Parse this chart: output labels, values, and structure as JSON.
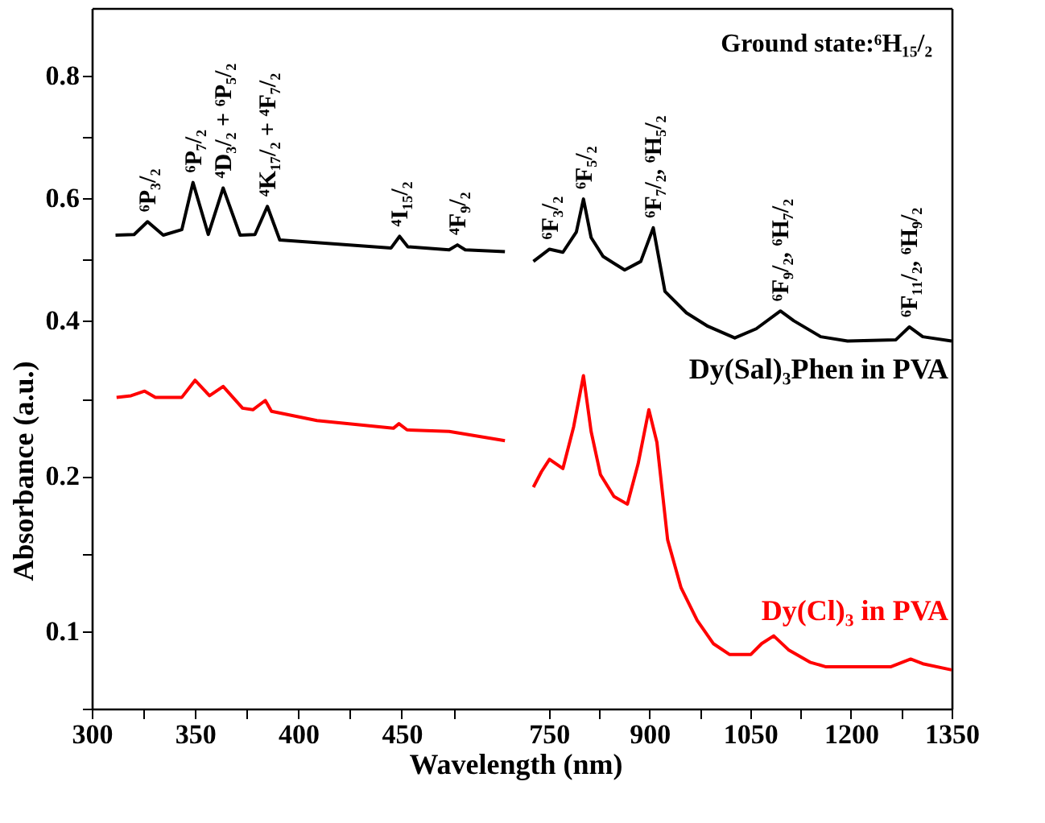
{
  "chart_data": [
    {
      "type": "line",
      "xlim": [
        300,
        505
      ],
      "ylim": [
        0.36,
        0.91
      ],
      "yticks": [
        0.4,
        {
          "value": 0.5,
          "label": null
        },
        0.6,
        {
          "value": 0.7,
          "label": null
        },
        0.8
      ],
      "tick_labels": "y",
      "series": [
        {
          "color": "#000000",
          "x": [
            311.5,
            320.5,
            327,
            334.6,
            343.6,
            349,
            356.4,
            363.6,
            371.8,
            379,
            385,
            391,
            411.5,
            444.9,
            449,
            453,
            473,
            477,
            480.8,
            500
          ],
          "values": [
            0.539,
            0.54,
            0.561,
            0.539,
            0.548,
            0.625,
            0.54,
            0.616,
            0.539,
            0.54,
            0.586,
            0.531,
            0.526,
            0.518,
            0.537,
            0.52,
            0.515,
            0.523,
            0.515,
            0.512
          ]
        }
      ],
      "annotations": [
        {
          "text": "⁶P₃/₂",
          "x": 327,
          "y": 0.561
        },
        {
          "text": "⁶P₇/₂",
          "x": 349,
          "y": 0.625
        },
        {
          "text": "⁴D₃/₂ + ⁶P₅/₂",
          "x": 363.6,
          "y": 0.616
        },
        {
          "text": "⁴K₁₇/₂ + ⁴F₇/₂",
          "x": 385,
          "y": 0.586
        },
        {
          "text": "⁴I₁₅/₂",
          "x": 449,
          "y": 0.537
        },
        {
          "text": "⁴F₉/₂",
          "x": 477,
          "y": 0.523
        }
      ]
    },
    {
      "type": "line",
      "xlim": [
        700,
        1350
      ],
      "ylim": [
        0.36,
        0.91
      ],
      "tick_labels": false,
      "series": [
        {
          "name": "Dy(Sal)₃Phen in PVA",
          "color": "#000000",
          "x": [
            727,
            751,
            771,
            791,
            801.6,
            813,
            831,
            863,
            887,
            905.6,
            923,
            955,
            987,
            1027,
            1059,
            1095,
            1115,
            1155,
            1195,
            1267,
            1287,
            1307,
            1350
          ],
          "values": [
            0.496,
            0.516,
            0.511,
            0.544,
            0.598,
            0.535,
            0.504,
            0.482,
            0.496,
            0.551,
            0.447,
            0.412,
            0.39,
            0.371,
            0.386,
            0.415,
            0.399,
            0.373,
            0.366,
            0.368,
            0.389,
            0.373,
            0.366
          ]
        }
      ],
      "annotations": [
        {
          "text": "⁶F₃/₂",
          "x": 751,
          "y": 0.516
        },
        {
          "text": "⁶F₅/₂",
          "x": 801.6,
          "y": 0.598
        },
        {
          "text": "⁶F₇/₂, ⁶H₅/₂",
          "x": 905.6,
          "y": 0.551
        },
        {
          "text": "⁶F₉/₂, ⁶H₇/₂",
          "x": 1095,
          "y": 0.415
        },
        {
          "text": "⁶F₁₁/₂, ⁶H₉/₂",
          "x": 1287,
          "y": 0.389
        },
        "Ground state:⁶H₁₅/₂"
      ]
    },
    {
      "type": "line",
      "xlabel": "Wavelength (nm)",
      "ylabel": "Absorbance (a.u.)",
      "xlim": [
        300,
        505
      ],
      "xticks": [
        300,
        {
          "value": 325,
          "label": null
        },
        350,
        {
          "value": 375,
          "label": null
        },
        400,
        {
          "value": 425,
          "label": null
        },
        450,
        {
          "value": 475,
          "label": null
        }
      ],
      "ylim": [
        0.05,
        0.285
      ],
      "yticks": [
        {
          "value": 0.05,
          "label": null
        },
        0.1,
        {
          "value": 0.15,
          "label": null
        },
        0.2,
        {
          "value": 0.25,
          "label": null
        }
      ],
      "series": [
        {
          "color": "#ff0000",
          "x": [
            312,
            319,
            325.6,
            330.8,
            343.6,
            350,
            357,
            363.6,
            373,
            378,
            384,
            387,
            409,
            446,
            448.7,
            452.6,
            473,
            500
          ],
          "values": [
            0.251,
            0.252,
            0.255,
            0.251,
            0.251,
            0.262,
            0.252,
            0.258,
            0.244,
            0.243,
            0.249,
            0.242,
            0.236,
            0.231,
            0.234,
            0.23,
            0.229,
            0.223
          ]
        }
      ]
    },
    {
      "type": "line",
      "xlim": [
        700,
        1350
      ],
      "xticks": [
        750,
        {
          "value": 825,
          "label": null
        },
        900,
        {
          "value": 975,
          "label": null
        },
        1050,
        {
          "value": 1125,
          "label": null
        },
        1200,
        {
          "value": 1275,
          "label": null
        },
        1350
      ],
      "ylim": [
        0.05,
        0.285
      ],
      "tick_labels": "x",
      "series": [
        {
          "name": "Dy(Cl)₃ in PVA",
          "color": "#ff0000",
          "x": [
            727,
            739,
            751,
            771,
            787,
            801.6,
            813,
            827,
            847,
            867,
            883,
            899,
            911,
            927,
            947,
            971,
            995,
            1019,
            1051,
            1067,
            1085,
            1107,
            1139,
            1163,
            1259,
            1289,
            1307,
            1350
          ],
          "values": [
            0.193,
            0.203,
            0.211,
            0.205,
            0.232,
            0.265,
            0.229,
            0.201,
            0.187,
            0.182,
            0.208,
            0.243,
            0.222,
            0.159,
            0.128,
            0.107,
            0.092,
            0.085,
            0.085,
            0.092,
            0.097,
            0.088,
            0.08,
            0.077,
            0.077,
            0.082,
            0.079,
            0.075
          ]
        }
      ]
    }
  ]
}
